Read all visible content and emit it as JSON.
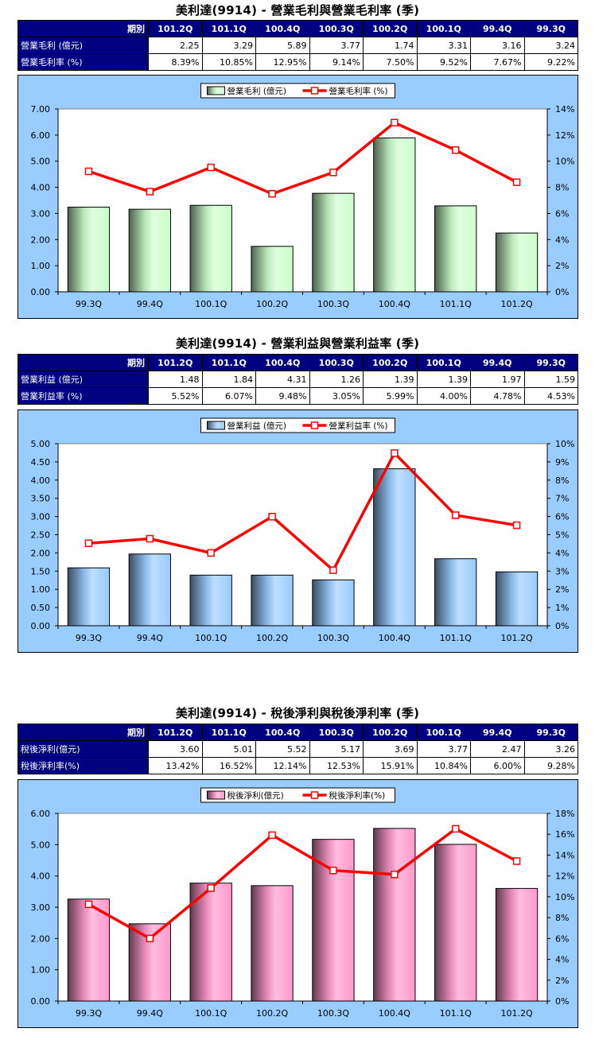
{
  "columns": [
    "101.2Q",
    "101.1Q",
    "100.4Q",
    "100.3Q",
    "100.2Q",
    "100.1Q",
    "99.4Q",
    "99.3Q"
  ],
  "period_label": "期別",
  "sections": [
    {
      "title": "美利達(9914) - 營業毛利與營業毛利率 (季)",
      "rows": [
        {
          "label": "營業毛利 (億元)",
          "values": [
            "2.25",
            "3.29",
            "5.89",
            "3.77",
            "1.74",
            "3.31",
            "3.16",
            "3.24"
          ]
        },
        {
          "label": "營業毛利率 (%)",
          "values": [
            "8.39%",
            "10.85%",
            "12.95%",
            "9.14%",
            "7.50%",
            "9.52%",
            "7.67%",
            "9.22%"
          ]
        }
      ]
    },
    {
      "title": "美利達(9914) - 營業利益與營業利益率 (季)",
      "rows": [
        {
          "label": "營業利益 (億元)",
          "values": [
            "1.48",
            "1.84",
            "4.31",
            "1.26",
            "1.39",
            "1.39",
            "1.97",
            "1.59"
          ]
        },
        {
          "label": "營業利益率 (%)",
          "values": [
            "5.52%",
            "6.07%",
            "9.48%",
            "3.05%",
            "5.99%",
            "4.00%",
            "4.78%",
            "4.53%"
          ]
        }
      ]
    },
    {
      "title": "美利達(9914) - 稅後淨利與稅後淨利率 (季)",
      "rows": [
        {
          "label": "稅後淨利(億元)",
          "values": [
            "3.60",
            "5.01",
            "5.52",
            "5.17",
            "3.69",
            "3.77",
            "2.47",
            "3.26"
          ]
        },
        {
          "label": "稅後淨利率(%)",
          "values": [
            "13.42%",
            "16.52%",
            "12.14%",
            "12.53%",
            "15.91%",
            "10.84%",
            "6.00%",
            "9.28%"
          ]
        }
      ]
    }
  ],
  "chart_data": [
    {
      "type": "bar",
      "categories": [
        "99.3Q",
        "99.4Q",
        "100.1Q",
        "100.2Q",
        "100.3Q",
        "100.4Q",
        "101.1Q",
        "101.2Q"
      ],
      "series": [
        {
          "name": "營業毛利 (億元)",
          "type": "bar",
          "axis": "left",
          "color": "#ccffcc",
          "values": [
            3.24,
            3.16,
            3.31,
            1.74,
            3.77,
            5.89,
            3.29,
            2.25
          ]
        },
        {
          "name": "營業毛利率 (%)",
          "type": "line",
          "axis": "right",
          "color": "#ff0000",
          "values": [
            9.22,
            7.67,
            9.52,
            7.5,
            9.14,
            12.95,
            10.85,
            8.39
          ]
        }
      ],
      "y_left": {
        "min": 0,
        "max": 7,
        "step": 1,
        "decimals": 2,
        "suffix": ""
      },
      "y_right": {
        "min": 0,
        "max": 14,
        "step": 2,
        "decimals": 0,
        "suffix": "%"
      },
      "grid": false,
      "legend": "top-center"
    },
    {
      "type": "bar",
      "categories": [
        "99.3Q",
        "99.4Q",
        "100.1Q",
        "100.2Q",
        "100.3Q",
        "100.4Q",
        "101.1Q",
        "101.2Q"
      ],
      "series": [
        {
          "name": "營業利益 (億元)",
          "type": "bar",
          "axis": "left",
          "color": "#99ccff",
          "values": [
            1.59,
            1.97,
            1.39,
            1.39,
            1.26,
            4.31,
            1.84,
            1.48
          ]
        },
        {
          "name": "營業利益率 (%)",
          "type": "line",
          "axis": "right",
          "color": "#ff0000",
          "values": [
            4.53,
            4.78,
            4.0,
            5.99,
            3.05,
            9.48,
            6.07,
            5.52
          ]
        }
      ],
      "y_left": {
        "min": 0,
        "max": 5,
        "step": 0.5,
        "decimals": 2,
        "suffix": ""
      },
      "y_right": {
        "min": 0,
        "max": 10,
        "step": 1,
        "decimals": 0,
        "suffix": "%"
      },
      "grid": false,
      "legend": "top-center"
    },
    {
      "type": "bar",
      "categories": [
        "99.3Q",
        "99.4Q",
        "100.1Q",
        "100.2Q",
        "100.3Q",
        "100.4Q",
        "101.1Q",
        "101.2Q"
      ],
      "series": [
        {
          "name": "稅後淨利(億元)",
          "type": "bar",
          "axis": "left",
          "color": "#ff99cc",
          "values": [
            3.26,
            2.47,
            3.77,
            3.69,
            5.17,
            5.52,
            5.01,
            3.6
          ]
        },
        {
          "name": "稅後淨利率(%)",
          "type": "line",
          "axis": "right",
          "color": "#ff0000",
          "values": [
            9.28,
            6.0,
            10.84,
            15.91,
            12.53,
            12.14,
            16.52,
            13.42
          ]
        }
      ],
      "y_left": {
        "min": 0,
        "max": 6,
        "step": 1,
        "decimals": 2,
        "suffix": ""
      },
      "y_right": {
        "min": 0,
        "max": 18,
        "step": 2,
        "decimals": 0,
        "suffix": "%"
      },
      "grid": false,
      "legend": "top-center"
    }
  ]
}
